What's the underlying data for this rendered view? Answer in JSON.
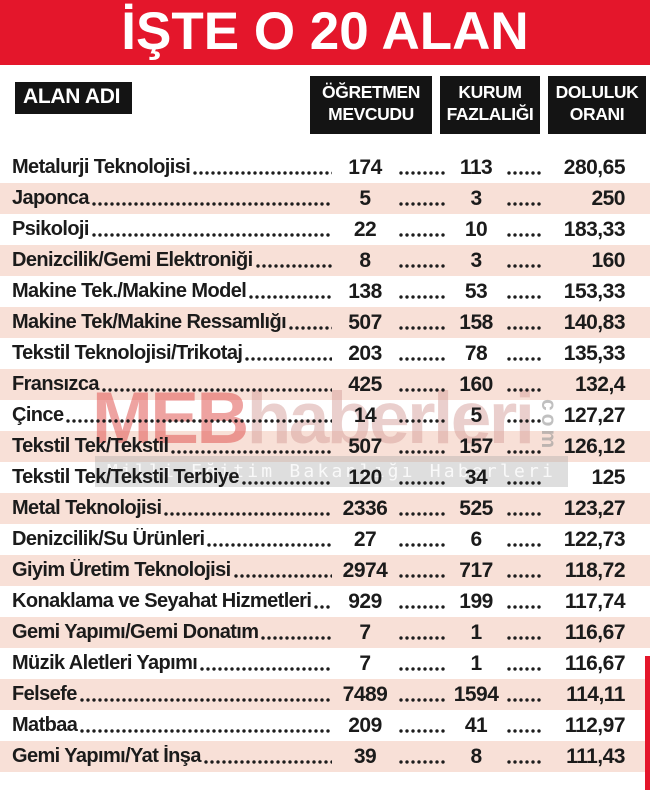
{
  "banner": {
    "title": "İŞTE O 20 ALAN"
  },
  "table": {
    "name_header": "ALAN ADI",
    "columns": [
      {
        "line1": "ÖĞRETMEN",
        "line2": "MEVCUDU"
      },
      {
        "line1": "KURUM",
        "line2": "FAZLALIĞI"
      },
      {
        "line1": "DOLULUK",
        "line2": "ORANI"
      }
    ],
    "rows": [
      {
        "name": "Metalurji Teknolojisi",
        "teacher_count": "174",
        "surplus": "113",
        "occupancy": "280,65"
      },
      {
        "name": "Japonca",
        "teacher_count": "5",
        "surplus": "3",
        "occupancy": "250"
      },
      {
        "name": "Psikoloji",
        "teacher_count": "22",
        "surplus": "10",
        "occupancy": "183,33"
      },
      {
        "name": "Denizcilik/Gemi Elektroniği",
        "teacher_count": "8",
        "surplus": "3",
        "occupancy": "160"
      },
      {
        "name": "Makine Tek./Makine Model",
        "teacher_count": "138",
        "surplus": "53",
        "occupancy": "153,33"
      },
      {
        "name": "Makine Tek/Makine Ressamlığı",
        "teacher_count": "507",
        "surplus": "158",
        "occupancy": "140,83"
      },
      {
        "name": "Tekstil Teknolojisi/Trikotaj",
        "teacher_count": "203",
        "surplus": "78",
        "occupancy": "135,33"
      },
      {
        "name": "Fransızca",
        "teacher_count": "425",
        "surplus": "160",
        "occupancy": "132,4"
      },
      {
        "name": "Çince",
        "teacher_count": "14",
        "surplus": "5",
        "occupancy": "127,27"
      },
      {
        "name": "Tekstil Tek/Tekstil",
        "teacher_count": "507",
        "surplus": "157",
        "occupancy": "126,12"
      },
      {
        "name": "Tekstil Tek/Tekstil Terbiye",
        "teacher_count": "120",
        "surplus": "34",
        "occupancy": "125"
      },
      {
        "name": "Metal Teknolojisi",
        "teacher_count": "2336",
        "surplus": "525",
        "occupancy": "123,27"
      },
      {
        "name": "Denizcilik/Su Ürünleri",
        "teacher_count": "27",
        "surplus": "6",
        "occupancy": "122,73"
      },
      {
        "name": "Giyim Üretim Teknolojisi",
        "teacher_count": "2974",
        "surplus": "717",
        "occupancy": "118,72"
      },
      {
        "name": "Konaklama ve Seyahat Hizmetleri",
        "teacher_count": "929",
        "surplus": "199",
        "occupancy": "117,74"
      },
      {
        "name": "Gemi Yapımı/Gemi Donatım",
        "teacher_count": "7",
        "surplus": "1",
        "occupancy": "116,67"
      },
      {
        "name": "Müzik Aletleri Yapımı",
        "teacher_count": "7",
        "surplus": "1",
        "occupancy": "116,67"
      },
      {
        "name": "Felsefe",
        "teacher_count": "7489",
        "surplus": "1594",
        "occupancy": "114,11"
      },
      {
        "name": "Matbaa",
        "teacher_count": "209",
        "surplus": "41",
        "occupancy": "112,97"
      },
      {
        "name": "Gemi Yapımı/Yat İnşa",
        "teacher_count": "39",
        "surplus": "8",
        "occupancy": "111,43"
      }
    ]
  },
  "watermark": {
    "brand_primary": "MEB",
    "brand_secondary": "haberleri",
    "brand_suffix": "com",
    "tagline": "Milli Eğitim Bakanlığı Haberleri"
  },
  "colors": {
    "banner_red": "#e4162b",
    "row_pink": "#f8e0d7",
    "header_black": "#141414",
    "text_black": "#1b1b1b",
    "watermark_red": "rgba(224,88,84,0.55)",
    "watermark_pink": "rgba(213,160,156,0.5)",
    "watermark_gray": "rgba(150,150,150,0.6)"
  }
}
